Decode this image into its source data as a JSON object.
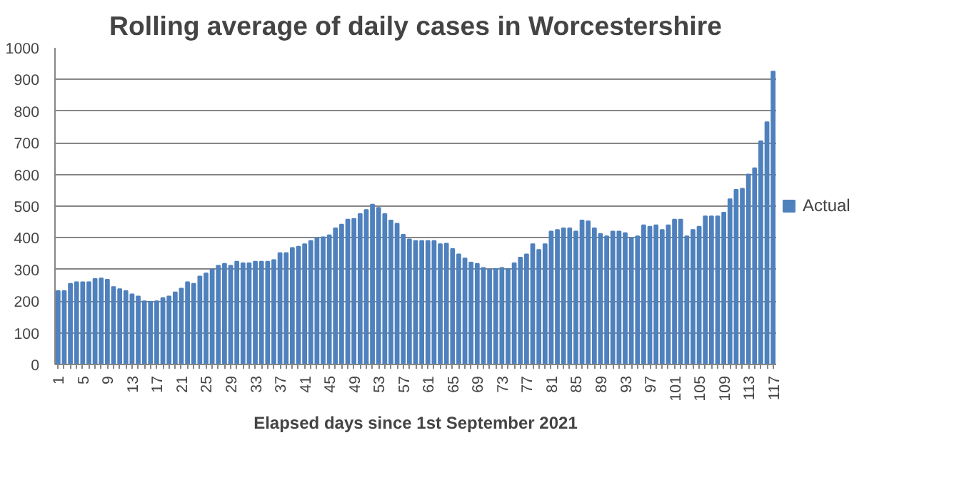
{
  "chart_data": {
    "type": "bar",
    "title": "Rolling average of daily cases in Worcestershire",
    "xlabel": "Elapsed days since 1st September 2021",
    "categories": [
      "1",
      null,
      null,
      null,
      "5",
      null,
      null,
      null,
      "9",
      null,
      null,
      null,
      "13",
      null,
      null,
      null,
      "17",
      null,
      null,
      null,
      "21",
      null,
      null,
      null,
      "25",
      null,
      null,
      null,
      "29",
      null,
      null,
      null,
      "33",
      null,
      null,
      null,
      "37",
      null,
      null,
      null,
      "41",
      null,
      null,
      null,
      "45",
      null,
      null,
      null,
      "49",
      null,
      null,
      null,
      "53",
      null,
      null,
      null,
      "57",
      null,
      null,
      null,
      "61",
      null,
      null,
      null,
      "65",
      null,
      null,
      null,
      "69",
      null,
      null,
      null,
      "73",
      null,
      null,
      null,
      "77",
      null,
      null,
      null,
      "81",
      null,
      null,
      null,
      "85",
      null,
      null,
      null,
      "89",
      null,
      null,
      null,
      "93",
      null,
      null,
      null,
      "97",
      null,
      null,
      null,
      "101",
      null,
      null,
      null,
      "105",
      null,
      null,
      null,
      "109",
      null,
      null,
      null,
      "113",
      null,
      null,
      null,
      "117"
    ],
    "series": [
      {
        "name": "Actual",
        "color": "#4f81bd",
        "values": [
          232,
          232,
          255,
          260,
          260,
          260,
          270,
          272,
          268,
          245,
          238,
          232,
          222,
          215,
          200,
          198,
          200,
          210,
          215,
          228,
          240,
          260,
          255,
          278,
          288,
          300,
          312,
          318,
          312,
          325,
          320,
          320,
          325,
          325,
          325,
          330,
          352,
          352,
          368,
          372,
          380,
          390,
          400,
          402,
          408,
          430,
          442,
          458,
          460,
          475,
          488,
          505,
          495,
          475,
          455,
          445,
          410,
          395,
          390,
          390,
          390,
          390,
          380,
          382,
          365,
          348,
          335,
          322,
          318,
          305,
          300,
          302,
          305,
          302,
          320,
          338,
          348,
          380,
          362,
          380,
          420,
          425,
          430,
          430,
          420,
          455,
          452,
          430,
          412,
          405,
          420,
          420,
          415,
          400,
          405,
          440,
          435,
          440,
          425,
          440,
          458,
          458,
          405,
          425,
          435,
          468,
          468,
          468,
          480,
          522,
          552,
          555,
          600,
          620,
          705,
          765,
          925
        ]
      }
    ],
    "ylim": [
      0,
      1000
    ],
    "yticks": [
      0,
      100,
      200,
      300,
      400,
      500,
      600,
      700,
      800,
      900,
      1000
    ],
    "grid": "y",
    "legend": "right"
  }
}
